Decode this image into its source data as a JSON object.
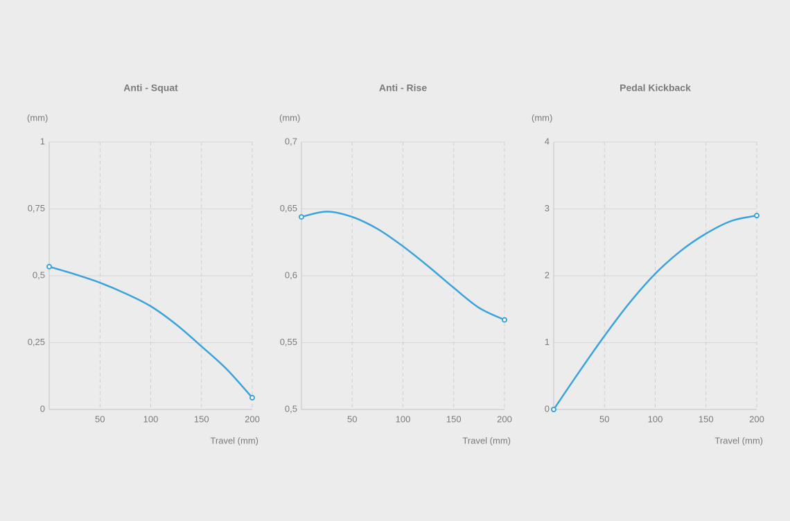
{
  "chart_data": [
    {
      "type": "line",
      "title": "Anti - Squat",
      "ylabel": "(mm)",
      "xlabel": "Travel (mm)",
      "x": [
        0,
        25,
        50,
        75,
        100,
        125,
        150,
        175,
        200
      ],
      "series": [
        {
          "name": "Anti - Squat",
          "color": "#3aa3dc",
          "values": [
            0.534,
            0.506,
            0.474,
            0.434,
            0.386,
            0.318,
            0.236,
            0.15,
            0.044
          ]
        }
      ],
      "xlim": [
        0,
        200
      ],
      "xticks": [
        50,
        100,
        150,
        200
      ],
      "ylim": [
        0,
        1
      ],
      "yticks": [
        0,
        {
          "value": 0.25,
          "label": "0,25"
        },
        {
          "value": 0.5,
          "label": "0,5"
        },
        {
          "value": 0.75,
          "label": "0,75"
        },
        1
      ],
      "grid": true
    },
    {
      "type": "line",
      "title": "Anti - Rise",
      "ylabel": "(mm)",
      "xlabel": "Travel (mm)",
      "x": [
        0,
        25,
        50,
        75,
        100,
        125,
        150,
        175,
        200
      ],
      "series": [
        {
          "name": "Anti - Rise",
          "color": "#3aa3dc",
          "values": [
            0.644,
            0.648,
            0.644,
            0.635,
            0.622,
            0.607,
            0.591,
            0.576,
            0.567
          ]
        }
      ],
      "xlim": [
        0,
        200
      ],
      "xticks": [
        50,
        100,
        150,
        200
      ],
      "ylim": [
        0.5,
        0.7
      ],
      "yticks": [
        {
          "value": 0.5,
          "label": "0,5"
        },
        {
          "value": 0.55,
          "label": "0,55"
        },
        {
          "value": 0.6,
          "label": "0,6"
        },
        {
          "value": 0.65,
          "label": "0,65"
        },
        {
          "value": 0.7,
          "label": "0,7"
        }
      ],
      "grid": true
    },
    {
      "type": "line",
      "title": "Pedal Kickback",
      "ylabel": "(mm)",
      "xlabel": "Travel (mm)",
      "x": [
        0,
        25,
        50,
        75,
        100,
        125,
        150,
        175,
        200
      ],
      "series": [
        {
          "name": "Pedal Kickback",
          "color": "#3aa3dc",
          "values": [
            0,
            0.56,
            1.1,
            1.6,
            2.03,
            2.37,
            2.63,
            2.82,
            2.9
          ]
        }
      ],
      "xlim": [
        0,
        200
      ],
      "xticks": [
        50,
        100,
        150,
        200
      ],
      "ylim": [
        0,
        4
      ],
      "yticks": [
        0,
        1,
        2,
        3,
        4
      ],
      "grid": true
    }
  ]
}
